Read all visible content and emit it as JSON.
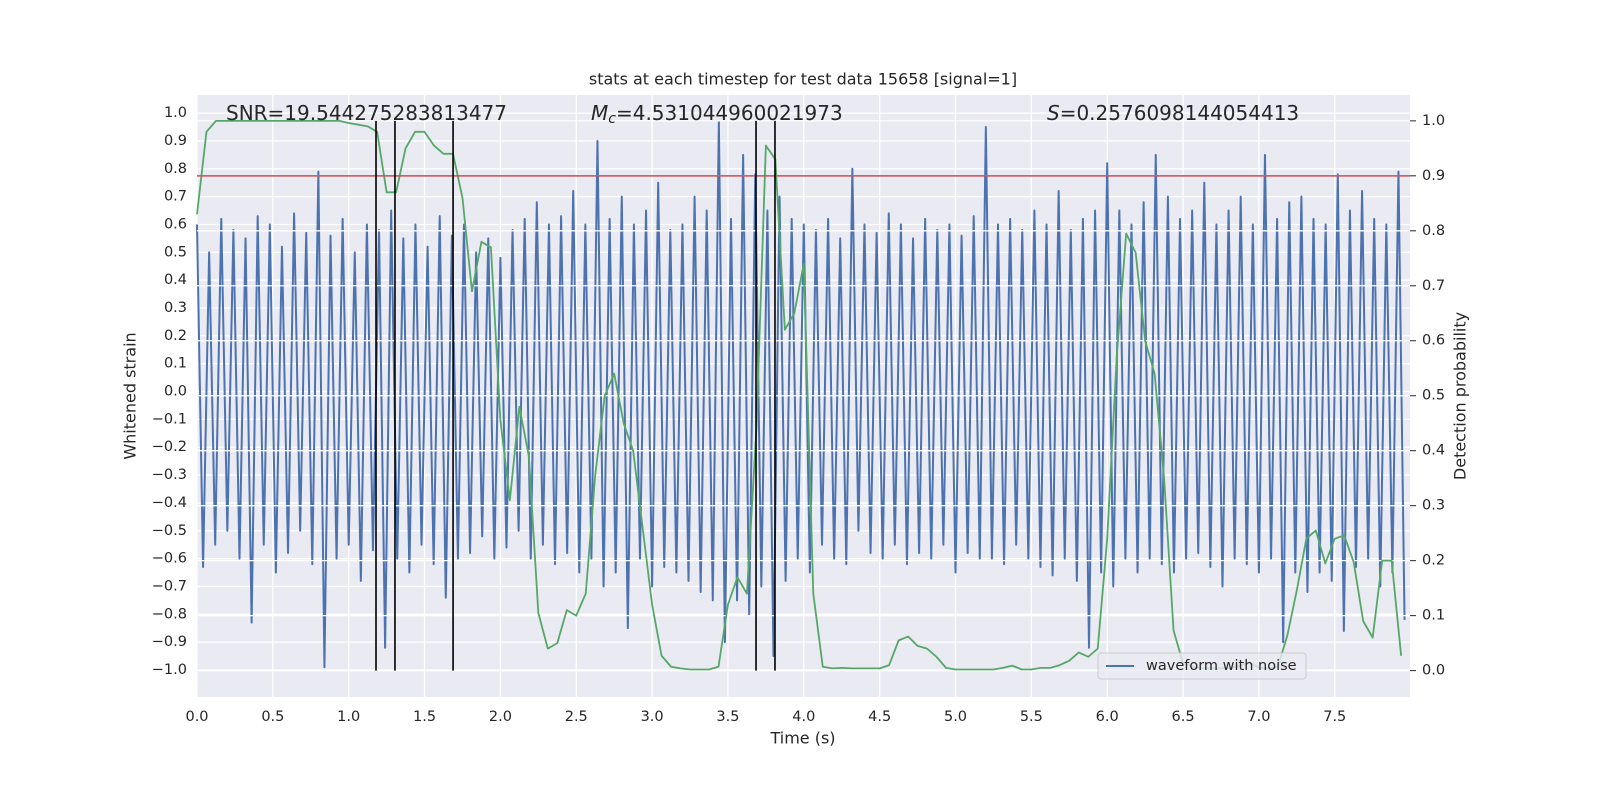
{
  "chart_data": {
    "type": "line",
    "title": "stats at each timestep for test data 15658 [signal=1]",
    "xlabel": "Time (s)",
    "ylabel": "Whitened strain",
    "y2label": "Detection probability",
    "grid": true,
    "background": "#eaeaf2",
    "legend": "lower right",
    "annotations": [
      {
        "text": "SNR=19.544275283813477"
      },
      {
        "symbol": "M",
        "subscript": "c",
        "text": "=4.531044960021973"
      },
      {
        "symbol": "S",
        "text": "=0.2576098144054413"
      }
    ],
    "xlim": [
      0,
      7.996
    ],
    "ylim": [
      -1.097,
      1.065
    ],
    "y2lim": [
      -0.048,
      1.047
    ],
    "xticks": [
      {
        "value": 0,
        "label": "0.0"
      },
      {
        "value": 0.5,
        "label": "0.5"
      },
      {
        "value": 1,
        "label": "1.0"
      },
      {
        "value": 1.5,
        "label": "1.5"
      },
      {
        "value": 2,
        "label": "2.0"
      },
      {
        "value": 2.5,
        "label": "2.5"
      },
      {
        "value": 3,
        "label": "3.0"
      },
      {
        "value": 3.5,
        "label": "3.5"
      },
      {
        "value": 4,
        "label": "4.0"
      },
      {
        "value": 4.5,
        "label": "4.5"
      },
      {
        "value": 5,
        "label": "5.0"
      },
      {
        "value": 5.5,
        "label": "5.5"
      },
      {
        "value": 6,
        "label": "6.0"
      },
      {
        "value": 6.5,
        "label": "6.5"
      },
      {
        "value": 7,
        "label": "7.0"
      },
      {
        "value": 7.5,
        "label": "7.5"
      }
    ],
    "yticks": [
      {
        "value": -1,
        "label": "−1.0"
      },
      {
        "value": -0.9,
        "label": "−0.9"
      },
      {
        "value": -0.8,
        "label": "−0.8"
      },
      {
        "value": -0.7,
        "label": "−0.7"
      },
      {
        "value": -0.6,
        "label": "−0.6"
      },
      {
        "value": -0.5,
        "label": "−0.5"
      },
      {
        "value": -0.4,
        "label": "−0.4"
      },
      {
        "value": -0.3,
        "label": "−0.3"
      },
      {
        "value": -0.2,
        "label": "−0.2"
      },
      {
        "value": -0.1,
        "label": "−0.1"
      },
      {
        "value": 0,
        "label": "0.0"
      },
      {
        "value": 0.1,
        "label": "0.1"
      },
      {
        "value": 0.2,
        "label": "0.2"
      },
      {
        "value": 0.3,
        "label": "0.3"
      },
      {
        "value": 0.4,
        "label": "0.4"
      },
      {
        "value": 0.5,
        "label": "0.5"
      },
      {
        "value": 0.6,
        "label": "0.6"
      },
      {
        "value": 0.7,
        "label": "0.7"
      },
      {
        "value": 0.8,
        "label": "0.8"
      },
      {
        "value": 0.9,
        "label": "0.9"
      },
      {
        "value": 1,
        "label": "1.0"
      }
    ],
    "y2ticks": [
      {
        "value": 0,
        "label": "0.0"
      },
      {
        "value": 0.1,
        "label": "0.1"
      },
      {
        "value": 0.2,
        "label": "0.2"
      },
      {
        "value": 0.3,
        "label": "0.3"
      },
      {
        "value": 0.4,
        "label": "0.4"
      },
      {
        "value": 0.5,
        "label": "0.5"
      },
      {
        "value": 0.6,
        "label": "0.6"
      },
      {
        "value": 0.7,
        "label": "0.7"
      },
      {
        "value": 0.8,
        "label": "0.8"
      },
      {
        "value": 0.9,
        "label": "0.9"
      },
      {
        "value": 1,
        "label": "1.0"
      }
    ],
    "hline": {
      "y": 0.9,
      "axis": "y2",
      "color": "#c44e52"
    },
    "vlines": {
      "x": [
        1.18,
        1.305,
        1.688,
        3.685,
        3.81
      ],
      "ymin": 0,
      "ymax": 1,
      "axis": "y2",
      "color": "#000000"
    },
    "series": [
      {
        "name": "waveform with noise",
        "color": "#4c72b0",
        "x": [
          0,
          0.04,
          0.08,
          0.12,
          0.16,
          0.2,
          0.24,
          0.28,
          0.32,
          0.36,
          0.4,
          0.44,
          0.48,
          0.52,
          0.56,
          0.6,
          0.64,
          0.68,
          0.72,
          0.76,
          0.8,
          0.84,
          0.88,
          0.92,
          0.96,
          1,
          1.04,
          1.08,
          1.12,
          1.16,
          1.2,
          1.24,
          1.28,
          1.32,
          1.36,
          1.4,
          1.44,
          1.48,
          1.52,
          1.56,
          1.6,
          1.64,
          1.68,
          1.72,
          1.76,
          1.8,
          1.84,
          1.88,
          1.92,
          1.96,
          2,
          2.04,
          2.08,
          2.12,
          2.16,
          2.2,
          2.24,
          2.28,
          2.32,
          2.36,
          2.4,
          2.44,
          2.48,
          2.52,
          2.56,
          2.6,
          2.64,
          2.68,
          2.72,
          2.76,
          2.8,
          2.84,
          2.88,
          2.92,
          2.96,
          3,
          3.04,
          3.08,
          3.12,
          3.16,
          3.2,
          3.24,
          3.28,
          3.32,
          3.36,
          3.4,
          3.44,
          3.48,
          3.52,
          3.56,
          3.6,
          3.64,
          3.68,
          3.72,
          3.76,
          3.8,
          3.84,
          3.88,
          3.92,
          3.96,
          4,
          4.04,
          4.08,
          4.12,
          4.16,
          4.2,
          4.24,
          4.28,
          4.32,
          4.36,
          4.4,
          4.44,
          4.48,
          4.52,
          4.56,
          4.6,
          4.64,
          4.68,
          4.72,
          4.76,
          4.8,
          4.84,
          4.88,
          4.92,
          4.96,
          5,
          5.04,
          5.08,
          5.12,
          5.16,
          5.2,
          5.24,
          5.28,
          5.32,
          5.36,
          5.4,
          5.44,
          5.48,
          5.52,
          5.56,
          5.6,
          5.64,
          5.68,
          5.72,
          5.76,
          5.8,
          5.84,
          5.88,
          5.92,
          5.96,
          6,
          6.04,
          6.08,
          6.12,
          6.16,
          6.2,
          6.24,
          6.28,
          6.32,
          6.36,
          6.4,
          6.44,
          6.48,
          6.52,
          6.56,
          6.6,
          6.64,
          6.68,
          6.72,
          6.76,
          6.8,
          6.84,
          6.88,
          6.92,
          6.96,
          7,
          7.04,
          7.08,
          7.12,
          7.16,
          7.2,
          7.24,
          7.28,
          7.32,
          7.36,
          7.4,
          7.44,
          7.48,
          7.52,
          7.56,
          7.6,
          7.64,
          7.68,
          7.72,
          7.76,
          7.8,
          7.84,
          7.88,
          7.92,
          7.96
        ],
        "values": [
          0.6,
          -0.63,
          0.5,
          -0.55,
          0.62,
          -0.5,
          0.58,
          -0.6,
          0.55,
          -0.83,
          0.63,
          -0.55,
          0.6,
          -0.65,
          0.52,
          -0.58,
          0.64,
          -0.5,
          0.57,
          -0.62,
          0.79,
          -0.99,
          0.56,
          -0.6,
          0.62,
          -0.55,
          0.5,
          -0.68,
          0.6,
          -0.57,
          0.58,
          -0.92,
          0.65,
          -0.6,
          0.55,
          -0.65,
          0.6,
          -0.55,
          0.52,
          -0.62,
          0.63,
          -0.74,
          0.56,
          -0.6,
          0.6,
          -0.58,
          0.5,
          -0.52,
          0.55,
          -0.6,
          0.48,
          -0.56,
          0.58,
          -0.5,
          0.62,
          -0.6,
          0.68,
          -0.55,
          0.6,
          -0.62,
          0.63,
          -0.58,
          0.72,
          -0.65,
          0.6,
          -0.6,
          0.9,
          -0.7,
          0.62,
          -0.65,
          0.7,
          -0.85,
          0.6,
          -0.6,
          0.65,
          -0.7,
          0.75,
          -0.63,
          0.58,
          -0.65,
          0.6,
          -0.68,
          0.7,
          -0.72,
          0.65,
          -0.75,
          0.97,
          -0.9,
          0.62,
          -0.75,
          0.85,
          -0.8,
          0.78,
          -0.7,
          0.65,
          -0.95,
          0.7,
          -0.68,
          0.62,
          -0.6,
          0.6,
          -0.65,
          0.58,
          -0.55,
          0.62,
          -0.6,
          0.55,
          -0.62,
          0.8,
          -0.5,
          0.6,
          -0.58,
          0.57,
          -0.6,
          0.64,
          -0.55,
          0.6,
          -0.62,
          0.55,
          -0.58,
          0.62,
          -0.6,
          0.58,
          -0.55,
          0.6,
          -0.65,
          0.56,
          -0.58,
          0.63,
          -0.6,
          0.95,
          -0.6,
          0.6,
          -0.62,
          0.62,
          -0.55,
          0.58,
          -0.6,
          0.65,
          -0.63,
          0.6,
          -0.66,
          0.72,
          -0.6,
          0.58,
          -0.68,
          0.62,
          -0.92,
          0.65,
          -0.65,
          0.82,
          -0.7,
          0.65,
          -0.6,
          0.6,
          -0.65,
          0.68,
          -0.6,
          0.85,
          -0.62,
          0.7,
          -0.65,
          0.62,
          -0.6,
          0.65,
          -0.58,
          0.75,
          -0.63,
          0.6,
          -0.7,
          0.65,
          -0.6,
          0.7,
          -0.62,
          0.6,
          -0.65,
          0.85,
          -0.6,
          0.62,
          -0.9,
          0.68,
          -0.65,
          0.7,
          -0.72,
          0.62,
          -0.65,
          0.6,
          -0.68,
          0.78,
          -0.86,
          0.65,
          -0.63,
          0.72,
          -0.6,
          0.62,
          -0.7,
          0.6,
          -0.65,
          0.79,
          -0.82
        ]
      },
      {
        "color": "#55a868",
        "axis": "y2",
        "x": [
          0,
          0.0625,
          0.125,
          0.1875,
          0.25,
          0.3125,
          0.375,
          0.4375,
          0.5,
          0.5625,
          0.625,
          0.6875,
          0.75,
          0.8125,
          0.875,
          0.9375,
          1,
          1.0625,
          1.125,
          1.1875,
          1.25,
          1.3125,
          1.375,
          1.4375,
          1.5,
          1.5625,
          1.625,
          1.6875,
          1.75,
          1.8125,
          1.875,
          1.9375,
          2,
          2.0625,
          2.125,
          2.1875,
          2.25,
          2.3125,
          2.375,
          2.4375,
          2.5,
          2.5625,
          2.625,
          2.6875,
          2.75,
          2.8125,
          2.875,
          2.9375,
          3,
          3.0625,
          3.125,
          3.1875,
          3.25,
          3.3125,
          3.375,
          3.4375,
          3.5,
          3.5625,
          3.625,
          3.6875,
          3.75,
          3.8125,
          3.875,
          3.9375,
          4,
          4.0625,
          4.125,
          4.1875,
          4.25,
          4.3125,
          4.375,
          4.4375,
          4.5,
          4.5625,
          4.625,
          4.6875,
          4.75,
          4.8125,
          4.875,
          4.9375,
          5,
          5.0625,
          5.125,
          5.1875,
          5.25,
          5.3125,
          5.375,
          5.4375,
          5.5,
          5.5625,
          5.625,
          5.6875,
          5.75,
          5.8125,
          5.875,
          5.9375,
          6,
          6.0625,
          6.125,
          6.1875,
          6.25,
          6.3125,
          6.375,
          6.4375,
          6.5,
          6.5625,
          6.625,
          6.6875,
          6.75,
          6.8125,
          6.875,
          6.9375,
          7,
          7.0625,
          7.125,
          7.1875,
          7.25,
          7.3125,
          7.375,
          7.4375,
          7.5,
          7.5625,
          7.625,
          7.6875,
          7.75,
          7.8125,
          7.875,
          7.9375
        ],
        "values": [
          0.83,
          0.98,
          1,
          1,
          1,
          1,
          1,
          1,
          1,
          1,
          1,
          1,
          1,
          1,
          1,
          1,
          0.996,
          0.993,
          0.99,
          0.98,
          0.87,
          0.87,
          0.95,
          0.98,
          0.98,
          0.955,
          0.94,
          0.94,
          0.86,
          0.69,
          0.78,
          0.77,
          0.455,
          0.31,
          0.48,
          0.39,
          0.105,
          0.04,
          0.05,
          0.11,
          0.1,
          0.14,
          0.355,
          0.5,
          0.54,
          0.45,
          0.4,
          0.26,
          0.12,
          0.027,
          0.007,
          0.004,
          0.002,
          0.002,
          0.002,
          0.007,
          0.12,
          0.17,
          0.14,
          0.44,
          0.955,
          0.93,
          0.62,
          0.65,
          0.74,
          0.14,
          0.007,
          0.004,
          0.005,
          0.004,
          0.004,
          0.004,
          0.004,
          0.01,
          0.055,
          0.062,
          0.045,
          0.04,
          0.025,
          0.005,
          0.002,
          0.002,
          0.002,
          0.002,
          0.002,
          0.005,
          0.009,
          0.002,
          0.002,
          0.005,
          0.005,
          0.01,
          0.018,
          0.033,
          0.025,
          0.04,
          0.24,
          0.57,
          0.795,
          0.76,
          0.6,
          0.54,
          0.35,
          0.073,
          0.013,
          0.007,
          0.004,
          0.004,
          0.004,
          0.004,
          0.009,
          0.015,
          0.005,
          0.004,
          0.007,
          0.064,
          0.146,
          0.24,
          0.255,
          0.195,
          0.24,
          0.246,
          0.197,
          0.09,
          0.06,
          0.2,
          0.2,
          0.027
        ]
      }
    ]
  }
}
